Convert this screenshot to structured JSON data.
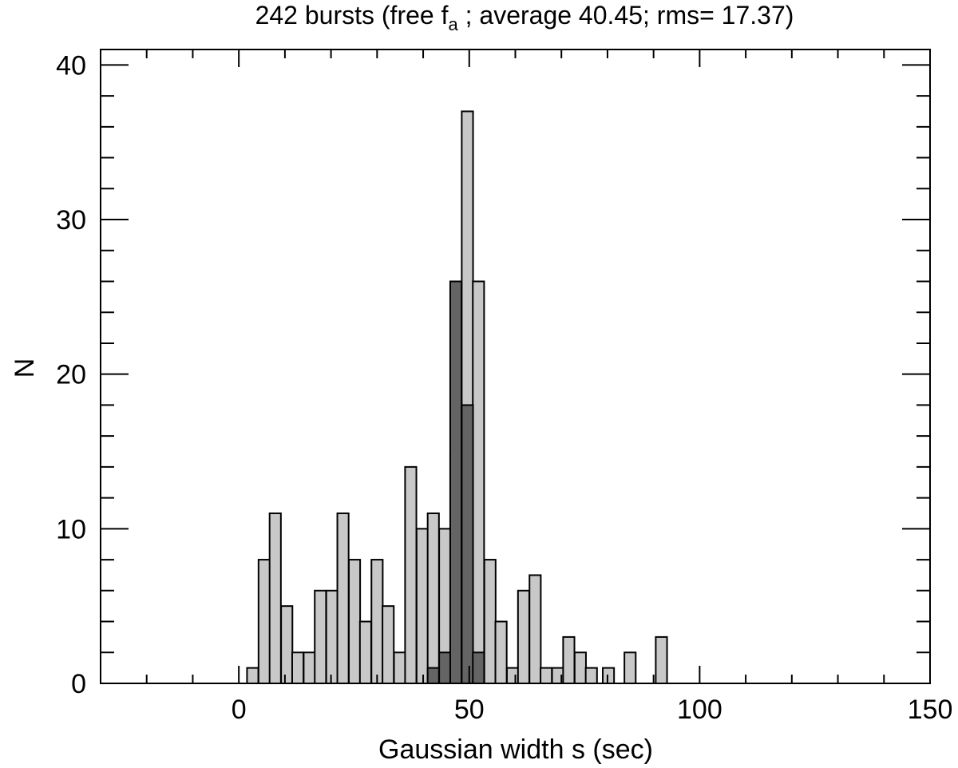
{
  "chart_data": {
    "type": "bar",
    "title": {
      "prefix": "242 bursts (free f",
      "subscript": "a",
      "suffix": " ; average  40.45; rms= 17.37)"
    },
    "xlabel": "Gaussian width s (sec)",
    "ylabel": "N",
    "xlim": [
      -30,
      150
    ],
    "ylim": [
      0,
      41
    ],
    "xticks": [
      0,
      50,
      100,
      150
    ],
    "yticks": [
      0,
      10,
      20,
      30,
      40
    ],
    "bin_width": 2.45,
    "series": [
      {
        "fill": "#c8c8c8",
        "bins": [
          {
            "x": 3.0,
            "value": 1
          },
          {
            "x": 5.5,
            "value": 8
          },
          {
            "x": 7.9,
            "value": 11
          },
          {
            "x": 10.4,
            "value": 5
          },
          {
            "x": 12.8,
            "value": 2
          },
          {
            "x": 15.3,
            "value": 2
          },
          {
            "x": 17.7,
            "value": 6
          },
          {
            "x": 20.2,
            "value": 6
          },
          {
            "x": 22.6,
            "value": 11
          },
          {
            "x": 25.1,
            "value": 8
          },
          {
            "x": 27.5,
            "value": 4
          },
          {
            "x": 30.0,
            "value": 8
          },
          {
            "x": 32.4,
            "value": 5
          },
          {
            "x": 34.9,
            "value": 2
          },
          {
            "x": 37.3,
            "value": 14
          },
          {
            "x": 39.8,
            "value": 10
          },
          {
            "x": 42.2,
            "value": 11
          },
          {
            "x": 44.7,
            "value": 10
          },
          {
            "x": 47.1,
            "value": 15
          },
          {
            "x": 49.6,
            "value": 37
          },
          {
            "x": 52.0,
            "value": 26
          },
          {
            "x": 54.5,
            "value": 8
          },
          {
            "x": 56.9,
            "value": 4
          },
          {
            "x": 59.4,
            "value": 1
          },
          {
            "x": 61.8,
            "value": 6
          },
          {
            "x": 64.3,
            "value": 7
          },
          {
            "x": 66.7,
            "value": 1
          },
          {
            "x": 69.2,
            "value": 1
          },
          {
            "x": 71.6,
            "value": 3
          },
          {
            "x": 74.1,
            "value": 2
          },
          {
            "x": 76.5,
            "value": 1
          },
          {
            "x": 80.2,
            "value": 1
          },
          {
            "x": 84.9,
            "value": 2
          },
          {
            "x": 91.7,
            "value": 3
          }
        ]
      },
      {
        "fill": "#646464",
        "bins": [
          {
            "x": 42.2,
            "value": 1
          },
          {
            "x": 44.7,
            "value": 2
          },
          {
            "x": 47.1,
            "value": 26
          },
          {
            "x": 49.6,
            "value": 18
          },
          {
            "x": 52.0,
            "value": 2
          }
        ]
      }
    ]
  }
}
